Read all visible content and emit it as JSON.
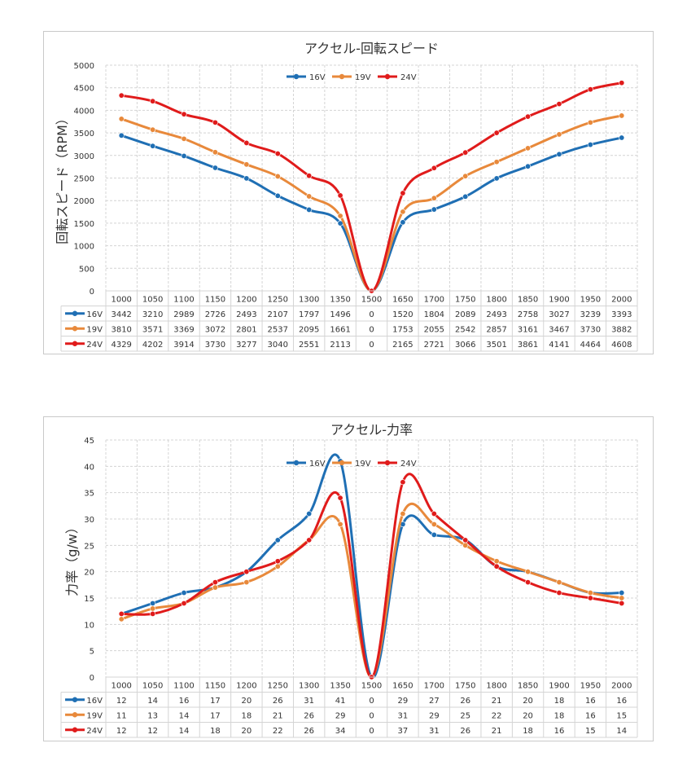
{
  "chart_data": [
    {
      "type": "line",
      "title": "アクセル-回転スピード",
      "xlabel": "",
      "ylabel": "回転スピード（RPM）",
      "ylim": [
        0,
        5000
      ],
      "ytick_step": 500,
      "yticks": [
        "0",
        "500",
        "1000",
        "1500",
        "2000",
        "2500",
        "3000",
        "3500",
        "4000",
        "4500",
        "5000"
      ],
      "legend_position": "top-center",
      "grid": true,
      "data_table": true,
      "categories": [
        "1000",
        "1050",
        "1100",
        "1150",
        "1200",
        "1250",
        "1300",
        "1350",
        "1500",
        "1650",
        "1700",
        "1750",
        "1800",
        "1850",
        "1900",
        "1950",
        "2000"
      ],
      "series": [
        {
          "name": "16V",
          "color": "#1f6fb4",
          "values": [
            3442,
            3210,
            2989,
            2726,
            2493,
            2107,
            1797,
            1496,
            0,
            1520,
            1804,
            2089,
            2493,
            2758,
            3027,
            3239,
            3393
          ]
        },
        {
          "name": "19V",
          "color": "#e8893b",
          "values": [
            3810,
            3571,
            3369,
            3072,
            2801,
            2537,
            2095,
            1661,
            0,
            1753,
            2055,
            2542,
            2857,
            3161,
            3467,
            3730,
            3882
          ]
        },
        {
          "name": "24V",
          "color": "#e01b1b",
          "values": [
            4329,
            4202,
            3914,
            3730,
            3277,
            3040,
            2551,
            2113,
            0,
            2165,
            2721,
            3066,
            3501,
            3861,
            4141,
            4464,
            4608
          ]
        }
      ]
    },
    {
      "type": "line",
      "title": "アクセル-力率",
      "xlabel": "",
      "ylabel": "力率（g/w）",
      "ylim": [
        0,
        45
      ],
      "ytick_step": 5,
      "yticks": [
        "0",
        "5",
        "10",
        "15",
        "20",
        "25",
        "30",
        "35",
        "40",
        "45"
      ],
      "legend_position": "top-center",
      "grid": true,
      "data_table": true,
      "categories": [
        "1000",
        "1050",
        "1100",
        "1150",
        "1200",
        "1250",
        "1300",
        "1350",
        "1500",
        "1650",
        "1700",
        "1750",
        "1800",
        "1850",
        "1900",
        "1950",
        "2000"
      ],
      "series": [
        {
          "name": "16V",
          "color": "#1f6fb4",
          "values": [
            12,
            14,
            16,
            17,
            20,
            26,
            31,
            41,
            0,
            29,
            27,
            26,
            21,
            20,
            18,
            16,
            16
          ]
        },
        {
          "name": "19V",
          "color": "#e8893b",
          "values": [
            11,
            13,
            14,
            17,
            18,
            21,
            26,
            29,
            0,
            31,
            29,
            25,
            22,
            20,
            18,
            16,
            15
          ]
        },
        {
          "name": "24V",
          "color": "#e01b1b",
          "values": [
            12,
            12,
            14,
            18,
            20,
            22,
            26,
            34,
            0,
            37,
            31,
            26,
            21,
            18,
            16,
            15,
            14
          ]
        }
      ]
    }
  ]
}
